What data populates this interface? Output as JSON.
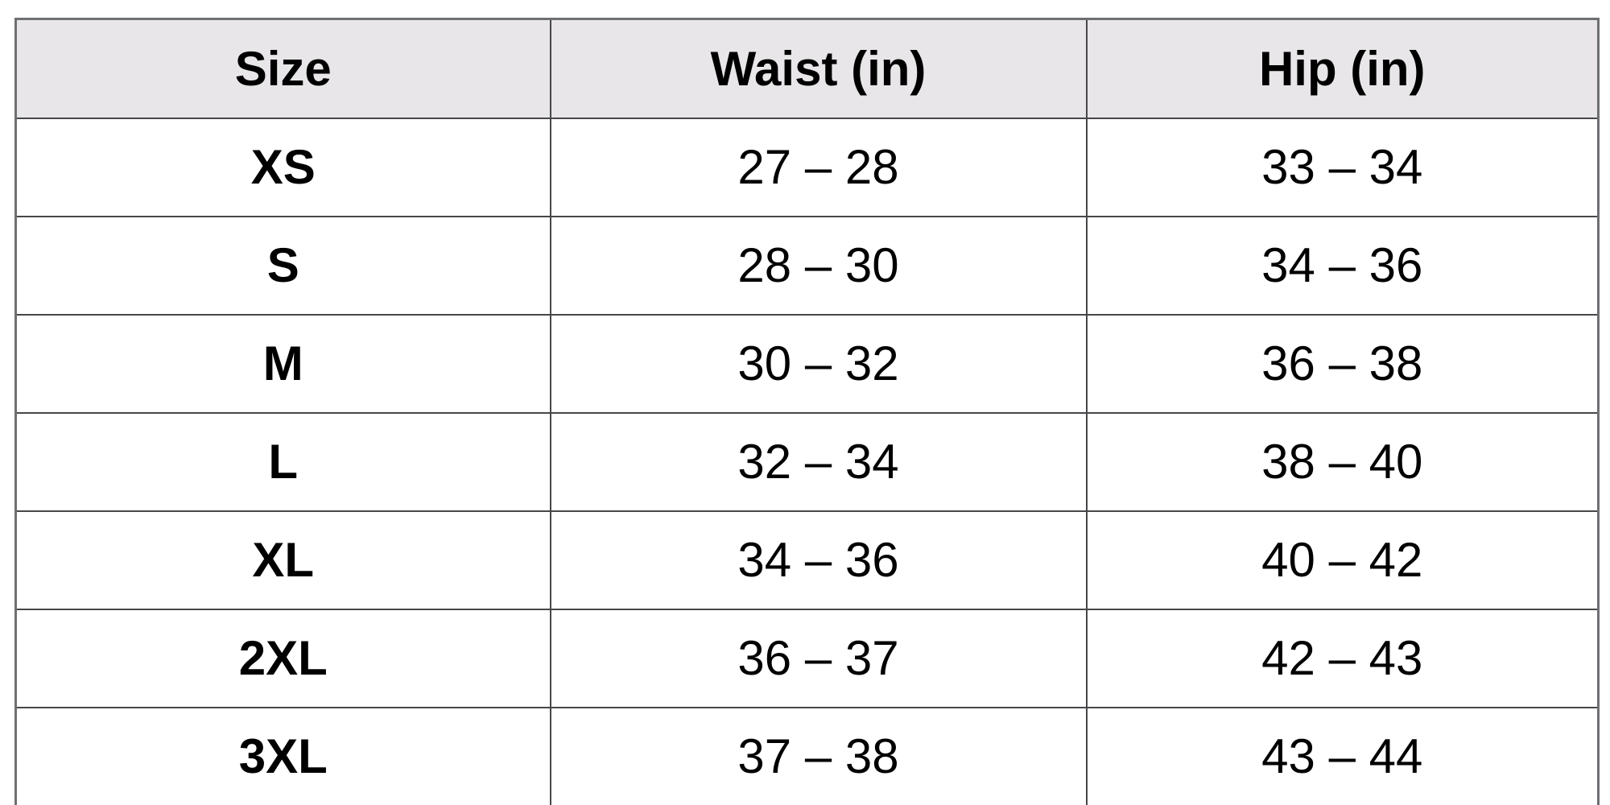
{
  "table": {
    "columns": [
      {
        "id": "size",
        "label": "Size"
      },
      {
        "id": "waist",
        "label": "Waist (in)"
      },
      {
        "id": "hip",
        "label": "Hip (in)"
      }
    ],
    "rows": [
      {
        "size": "XS",
        "waist": "27 – 28",
        "hip": "33 – 34"
      },
      {
        "size": "S",
        "waist": "28 – 30",
        "hip": "34 – 36"
      },
      {
        "size": "M",
        "waist": "30 – 32",
        "hip": "36 – 38"
      },
      {
        "size": "L",
        "waist": "32 – 34",
        "hip": "38 – 40"
      },
      {
        "size": "XL",
        "waist": "34 – 36",
        "hip": "40 – 42"
      },
      {
        "size": "2XL",
        "waist": "36 – 37",
        "hip": "42 – 43"
      },
      {
        "size": "3XL",
        "waist": "37 – 38",
        "hip": "43 – 44"
      }
    ],
    "colors": {
      "header_bg": "#e8e6e8",
      "cell_bg": "#ffffff",
      "inner_border": "#47474a",
      "outer_border": "#6e6f72",
      "text": "#000000"
    }
  }
}
